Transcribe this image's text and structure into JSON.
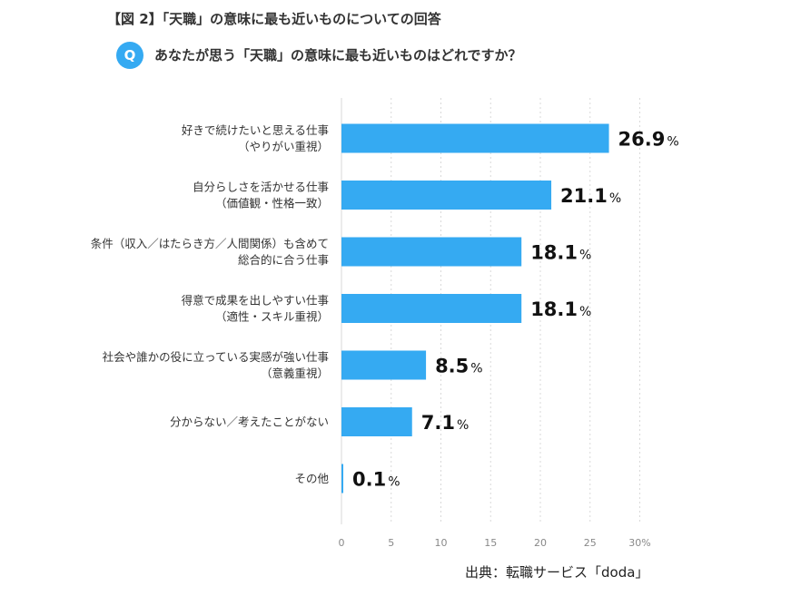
{
  "header": {
    "title": "【図 2】「天職」の意味に最も近いものについての回答",
    "q_badge": "Q",
    "question": "あなたが思う「天職」の意味に最も近いものはどれですか？"
  },
  "source": "出典：転職サービス「doda」",
  "colors": {
    "bar": "#35aaf2",
    "grid": "#d9d9d9"
  },
  "chart_data": {
    "type": "bar",
    "orientation": "horizontal",
    "categories": [
      [
        "好きで続けたいと思える仕事",
        "（やりがい重視）"
      ],
      [
        "自分らしさを活かせる仕事",
        "（価値観・性格一致）"
      ],
      [
        "条件（収入／はたらき方／人間関係）も含めて",
        "総合的に合う仕事"
      ],
      [
        "得意で成果を出しやすい仕事",
        "（適性・スキル重視）"
      ],
      [
        "社会や誰かの役に立っている実感が強い仕事",
        "（意義重視）"
      ],
      [
        "分からない／考えたことがない"
      ],
      [
        "その他"
      ]
    ],
    "values": [
      26.9,
      21.1,
      18.1,
      18.1,
      8.5,
      7.1,
      0.1
    ],
    "value_unit": "%",
    "xlim": [
      0,
      30
    ],
    "xticks": [
      "0",
      "5",
      "10",
      "15",
      "20",
      "25",
      "30%"
    ],
    "grid": true
  }
}
